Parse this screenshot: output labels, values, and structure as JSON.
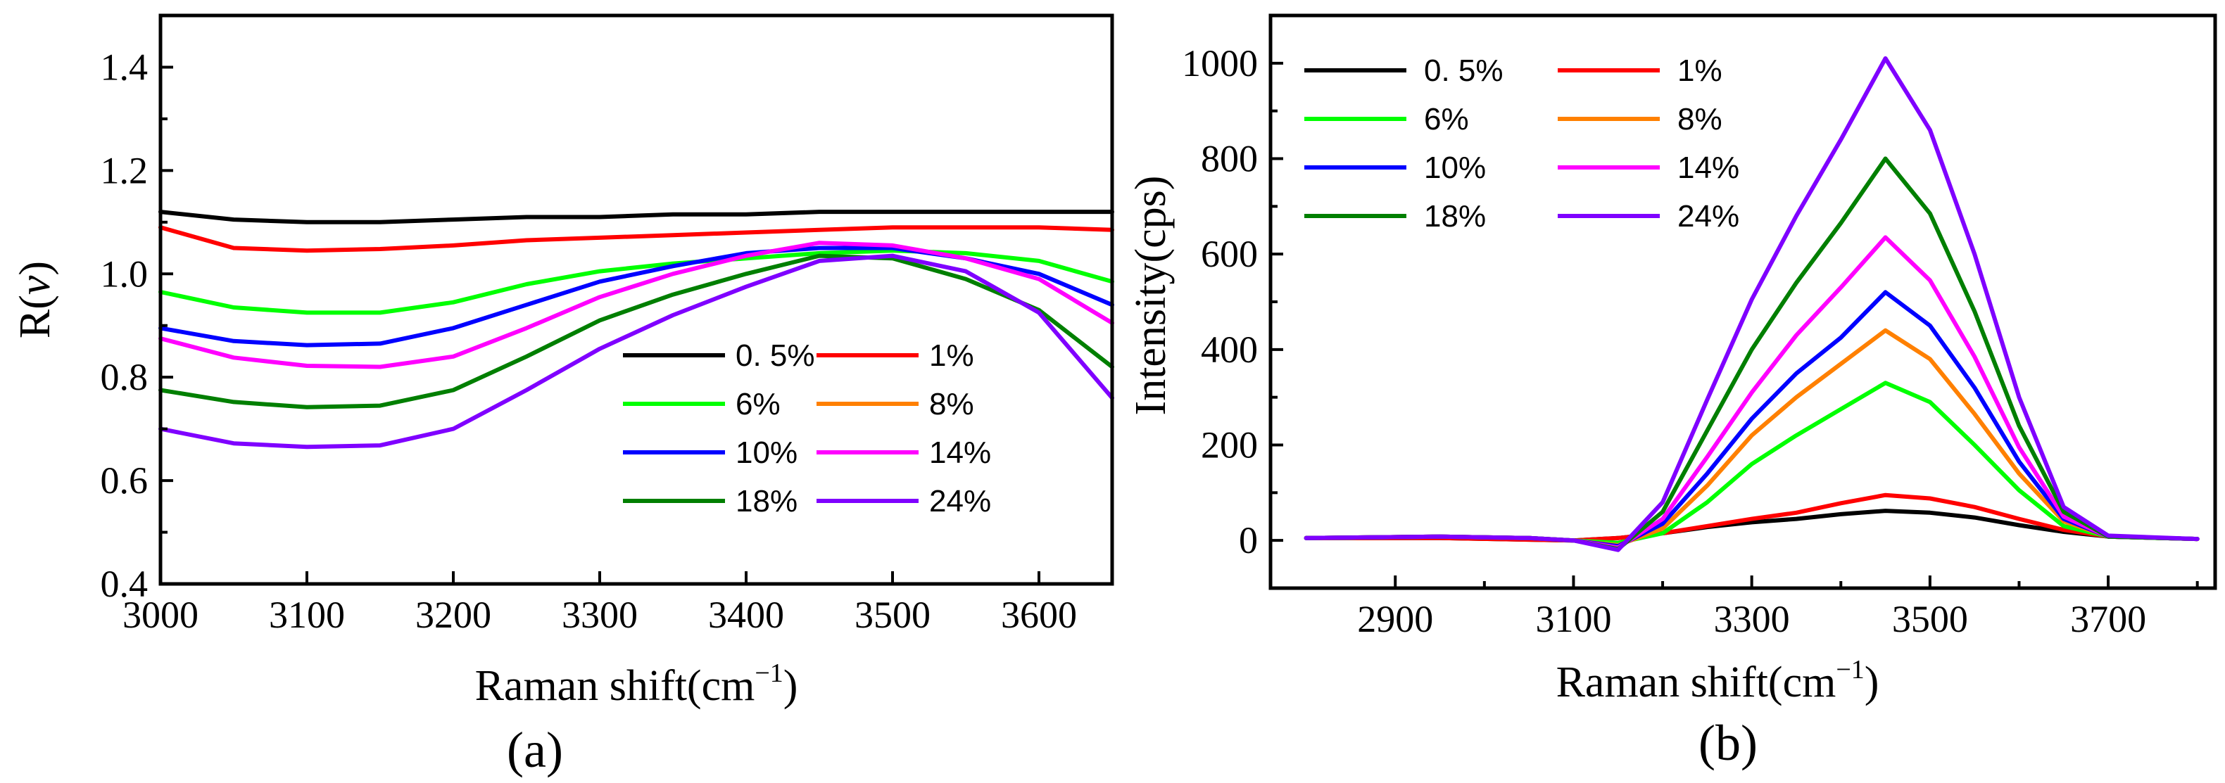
{
  "chart_data": [
    {
      "type": "line",
      "panel_label": "(a)",
      "xlabel": "Raman shift(cm",
      "xlabel_sup": "−1",
      "xlabel_close": ")",
      "ylabel_prefix": "R(",
      "ylabel_var": "v",
      "ylabel_suffix": ")",
      "xlim": [
        3000,
        3650
      ],
      "ylim": [
        0.4,
        1.5
      ],
      "xticks": [
        3000,
        3100,
        3200,
        3300,
        3400,
        3500,
        3600
      ],
      "xtick_labels": [
        "3000",
        "3100",
        "3200",
        "3300",
        "3400",
        "3500",
        "3600"
      ],
      "yticks": [
        0.4,
        0.6,
        0.8,
        1.0,
        1.2,
        1.4
      ],
      "ytick_labels": [
        "0.4",
        "0.6",
        "0.8",
        "1.0",
        "1.2",
        "1.4"
      ],
      "legend_position": "lower-right",
      "series": [
        {
          "name": "0. 5%",
          "color": "#000000",
          "x": [
            3000,
            3050,
            3100,
            3150,
            3200,
            3250,
            3300,
            3350,
            3400,
            3450,
            3500,
            3550,
            3600,
            3650
          ],
          "y": [
            1.12,
            1.105,
            1.1,
            1.1,
            1.105,
            1.11,
            1.11,
            1.115,
            1.115,
            1.12,
            1.12,
            1.12,
            1.12,
            1.12
          ]
        },
        {
          "name": "1%",
          "color": "#ff0000",
          "x": [
            3000,
            3050,
            3100,
            3150,
            3200,
            3250,
            3300,
            3350,
            3400,
            3450,
            3500,
            3550,
            3600,
            3650
          ],
          "y": [
            1.09,
            1.05,
            1.045,
            1.048,
            1.055,
            1.065,
            1.07,
            1.075,
            1.08,
            1.085,
            1.09,
            1.09,
            1.09,
            1.085
          ]
        },
        {
          "name": "6%",
          "color": "#00ff00",
          "x": [
            3000,
            3050,
            3100,
            3150,
            3200,
            3250,
            3300,
            3350,
            3400,
            3450,
            3500,
            3550,
            3600,
            3650
          ],
          "y": [
            0.965,
            0.935,
            0.925,
            0.925,
            0.945,
            0.98,
            1.005,
            1.02,
            1.03,
            1.04,
            1.045,
            1.04,
            1.025,
            0.985
          ]
        },
        {
          "name": "8%",
          "color": "#ff8000",
          "x": [],
          "y": []
        },
        {
          "name": "10%",
          "color": "#0000ff",
          "x": [
            3000,
            3050,
            3100,
            3150,
            3200,
            3250,
            3300,
            3350,
            3400,
            3450,
            3500,
            3550,
            3600,
            3650
          ],
          "y": [
            0.895,
            0.87,
            0.862,
            0.865,
            0.895,
            0.94,
            0.985,
            1.015,
            1.04,
            1.05,
            1.05,
            1.03,
            1.0,
            0.94
          ]
        },
        {
          "name": "14%",
          "color": "#ff00ff",
          "x": [
            3000,
            3050,
            3100,
            3150,
            3200,
            3250,
            3300,
            3350,
            3400,
            3450,
            3500,
            3550,
            3600,
            3650
          ],
          "y": [
            0.875,
            0.838,
            0.822,
            0.82,
            0.84,
            0.895,
            0.955,
            1.0,
            1.035,
            1.06,
            1.055,
            1.03,
            0.99,
            0.905
          ]
        },
        {
          "name": "18%",
          "color": "#007f00",
          "x": [
            3000,
            3050,
            3100,
            3150,
            3200,
            3250,
            3300,
            3350,
            3400,
            3450,
            3500,
            3550,
            3600,
            3650
          ],
          "y": [
            0.775,
            0.752,
            0.742,
            0.745,
            0.775,
            0.84,
            0.91,
            0.96,
            1.0,
            1.035,
            1.03,
            0.99,
            0.93,
            0.82
          ]
        },
        {
          "name": "24%",
          "color": "#7f00ff",
          "x": [
            3000,
            3050,
            3100,
            3150,
            3200,
            3250,
            3300,
            3350,
            3400,
            3450,
            3500,
            3550,
            3600,
            3650
          ],
          "y": [
            0.7,
            0.672,
            0.665,
            0.668,
            0.7,
            0.775,
            0.855,
            0.92,
            0.975,
            1.025,
            1.035,
            1.005,
            0.925,
            0.76
          ]
        }
      ]
    },
    {
      "type": "line",
      "panel_label": "(b)",
      "xlabel": "Raman shift(cm",
      "xlabel_sup": "−1",
      "xlabel_close": ")",
      "ylabel": "Intensity(cps)",
      "xlim": [
        2760,
        3820
      ],
      "ylim": [
        -100,
        1100
      ],
      "xticks": [
        2900,
        3100,
        3300,
        3500,
        3700
      ],
      "xtick_labels": [
        "2900",
        "3100",
        "3300",
        "3500",
        "3700"
      ],
      "xminor": [
        3000,
        3200,
        3400,
        3600,
        3800
      ],
      "yticks": [
        0,
        200,
        400,
        600,
        800,
        1000
      ],
      "ytick_labels": [
        "0",
        "200",
        "400",
        "600",
        "800",
        "1000"
      ],
      "legend_position": "top-left",
      "series": [
        {
          "name": "0. 5%",
          "color": "#000000",
          "x": [
            2800,
            2950,
            3100,
            3150,
            3200,
            3250,
            3300,
            3350,
            3400,
            3450,
            3500,
            3550,
            3600,
            3650,
            3700,
            3800
          ],
          "y": [
            5,
            5,
            0,
            5,
            15,
            28,
            38,
            45,
            55,
            62,
            58,
            48,
            32,
            18,
            8,
            3
          ]
        },
        {
          "name": "1%",
          "color": "#ff0000",
          "x": [
            2800,
            2950,
            3100,
            3150,
            3200,
            3250,
            3300,
            3350,
            3400,
            3450,
            3500,
            3550,
            3600,
            3650,
            3700,
            3800
          ],
          "y": [
            5,
            5,
            0,
            5,
            15,
            30,
            45,
            58,
            78,
            95,
            88,
            70,
            45,
            22,
            8,
            3
          ]
        },
        {
          "name": "6%",
          "color": "#00ff00",
          "x": [
            2800,
            2950,
            3050,
            3100,
            3150,
            3200,
            3250,
            3300,
            3350,
            3400,
            3450,
            3500,
            3550,
            3600,
            3650,
            3700,
            3800
          ],
          "y": [
            5,
            8,
            5,
            0,
            -5,
            15,
            80,
            160,
            220,
            275,
            330,
            290,
            200,
            105,
            30,
            8,
            3
          ]
        },
        {
          "name": "8%",
          "color": "#ff8000",
          "x": [
            2800,
            2950,
            3050,
            3100,
            3150,
            3200,
            3250,
            3300,
            3350,
            3400,
            3450,
            3500,
            3550,
            3600,
            3650,
            3700,
            3800
          ],
          "y": [
            5,
            8,
            5,
            0,
            -10,
            25,
            115,
            220,
            300,
            370,
            440,
            380,
            265,
            140,
            40,
            8,
            3
          ]
        },
        {
          "name": "10%",
          "color": "#0000ff",
          "x": [
            2800,
            2950,
            3050,
            3100,
            3150,
            3200,
            3250,
            3300,
            3350,
            3400,
            3450,
            3500,
            3550,
            3600,
            3650,
            3700,
            3800
          ],
          "y": [
            5,
            8,
            5,
            0,
            -12,
            35,
            140,
            255,
            350,
            425,
            520,
            450,
            320,
            165,
            45,
            8,
            3
          ]
        },
        {
          "name": "14%",
          "color": "#ff00ff",
          "x": [
            2800,
            2950,
            3050,
            3100,
            3150,
            3200,
            3250,
            3300,
            3350,
            3400,
            3450,
            3500,
            3550,
            3600,
            3650,
            3700,
            3800
          ],
          "y": [
            5,
            8,
            5,
            0,
            -15,
            45,
            175,
            310,
            430,
            530,
            635,
            545,
            385,
            195,
            50,
            8,
            3
          ]
        },
        {
          "name": "18%",
          "color": "#007f00",
          "x": [
            2800,
            2950,
            3050,
            3100,
            3150,
            3200,
            3250,
            3300,
            3350,
            3400,
            3450,
            3500,
            3550,
            3600,
            3650,
            3700,
            3800
          ],
          "y": [
            5,
            8,
            5,
            0,
            -18,
            60,
            230,
            400,
            540,
            665,
            800,
            685,
            480,
            240,
            60,
            8,
            3
          ]
        },
        {
          "name": "24%",
          "color": "#7f00ff",
          "x": [
            2800,
            2950,
            3050,
            3100,
            3150,
            3200,
            3250,
            3300,
            3350,
            3400,
            3450,
            3500,
            3550,
            3600,
            3650,
            3700,
            3800
          ],
          "y": [
            5,
            8,
            5,
            0,
            -20,
            80,
            295,
            505,
            680,
            840,
            1010,
            860,
            600,
            300,
            70,
            10,
            3
          ]
        }
      ]
    }
  ]
}
